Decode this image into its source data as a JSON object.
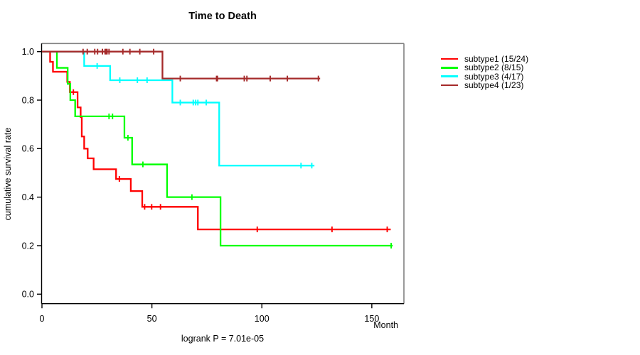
{
  "title": "Time to Death",
  "y_axis_title": "cumulative survival rate",
  "x_axis_title": "Month",
  "footer": "logrank P = 7.01e-05",
  "axes": {
    "x_ticks": [
      0,
      50,
      100,
      150
    ],
    "y_ticks": [
      "0.0",
      "0.2",
      "0.4",
      "0.6",
      "0.8",
      "1.0"
    ],
    "box_color": "#808080",
    "axis_color": "#000000"
  },
  "legend": {
    "items": [
      {
        "label": "subtype1 (15/24)",
        "color": "#ff0000"
      },
      {
        "label": "subtype2 (8/15)",
        "color": "#00ff00"
      },
      {
        "label": "subtype3 (4/17)",
        "color": "#00ffff"
      },
      {
        "label": "subtype4 (1/23)",
        "color": "#a52a2a"
      }
    ]
  },
  "chart_data": {
    "type": "line",
    "subtype": "kaplan-meier-step",
    "title": "Time to Death",
    "xlabel": "Month",
    "ylabel": "cumulative survival rate",
    "xlim": [
      0,
      165
    ],
    "ylim": [
      0.0,
      1.0
    ],
    "grid": false,
    "legend_position": "right-outside",
    "series": [
      {
        "name": "subtype1 (15/24)",
        "color": "#ff0000",
        "start": [
          0,
          1.0
        ],
        "steps": [
          [
            3.7,
            0.958
          ],
          [
            5.0,
            0.917
          ],
          [
            11.5,
            0.875
          ],
          [
            12.7,
            0.833
          ],
          [
            16.2,
            0.77
          ],
          [
            17.6,
            0.73
          ],
          [
            18.1,
            0.65
          ],
          [
            19.2,
            0.6
          ],
          [
            20.8,
            0.56
          ],
          [
            23.5,
            0.515
          ],
          [
            33.7,
            0.475
          ],
          [
            40.4,
            0.425
          ],
          [
            45.6,
            0.36
          ],
          [
            70.9,
            0.267
          ]
        ],
        "end_time": 158.6,
        "censors": [
          [
            14.3,
            0.833
          ],
          [
            35.2,
            0.475
          ],
          [
            46.7,
            0.36
          ],
          [
            49.9,
            0.36
          ],
          [
            53.9,
            0.36
          ],
          [
            97.9,
            0.267
          ],
          [
            131.9,
            0.267
          ],
          [
            157.0,
            0.267
          ]
        ]
      },
      {
        "name": "subtype2 (8/15)",
        "color": "#00ff00",
        "start": [
          0,
          1.0
        ],
        "steps": [
          [
            6.8,
            0.933
          ],
          [
            11.7,
            0.867
          ],
          [
            12.9,
            0.8
          ],
          [
            15.1,
            0.733
          ],
          [
            37.5,
            0.645
          ],
          [
            41.0,
            0.535
          ],
          [
            56.9,
            0.4
          ],
          [
            81.2,
            0.2
          ]
        ],
        "end_time": 159.5,
        "censors": [
          [
            30.5,
            0.733
          ],
          [
            32.1,
            0.733
          ],
          [
            39.1,
            0.645
          ],
          [
            45.9,
            0.535
          ],
          [
            68.2,
            0.4
          ],
          [
            158.8,
            0.2
          ]
        ]
      },
      {
        "name": "subtype3 (4/17)",
        "color": "#00ffff",
        "start": [
          0,
          1.0
        ],
        "steps": [
          [
            19.2,
            0.941
          ],
          [
            31.0,
            0.882
          ],
          [
            59.3,
            0.79
          ],
          [
            80.6,
            0.53
          ]
        ],
        "end_time": 123.9,
        "censors": [
          [
            25.1,
            0.941
          ],
          [
            35.4,
            0.882
          ],
          [
            43.4,
            0.882
          ],
          [
            47.8,
            0.882
          ],
          [
            62.9,
            0.79
          ],
          [
            68.8,
            0.79
          ],
          [
            69.9,
            0.79
          ],
          [
            70.9,
            0.79
          ],
          [
            74.7,
            0.79
          ],
          [
            117.8,
            0.53
          ],
          [
            122.7,
            0.53
          ]
        ]
      },
      {
        "name": "subtype4 (1/23)",
        "color": "#a52a2a",
        "start": [
          0,
          1.0
        ],
        "steps": [
          [
            54.8,
            0.889
          ]
        ],
        "end_time": 126.5,
        "censors": [
          [
            18.7,
            1.0
          ],
          [
            20.6,
            1.0
          ],
          [
            24.0,
            1.0
          ],
          [
            25.3,
            1.0
          ],
          [
            27.5,
            1.0
          ],
          [
            28.7,
            1.0
          ],
          [
            29.2,
            1.0
          ],
          [
            29.6,
            1.0
          ],
          [
            30.5,
            1.0
          ],
          [
            36.8,
            1.0
          ],
          [
            40.0,
            1.0
          ],
          [
            44.5,
            1.0
          ],
          [
            50.8,
            1.0
          ],
          [
            62.9,
            0.889
          ],
          [
            79.4,
            0.889
          ],
          [
            79.8,
            0.889
          ],
          [
            92.0,
            0.889
          ],
          [
            93.2,
            0.889
          ],
          [
            103.8,
            0.889
          ],
          [
            111.6,
            0.889
          ],
          [
            125.7,
            0.889
          ]
        ]
      }
    ]
  }
}
